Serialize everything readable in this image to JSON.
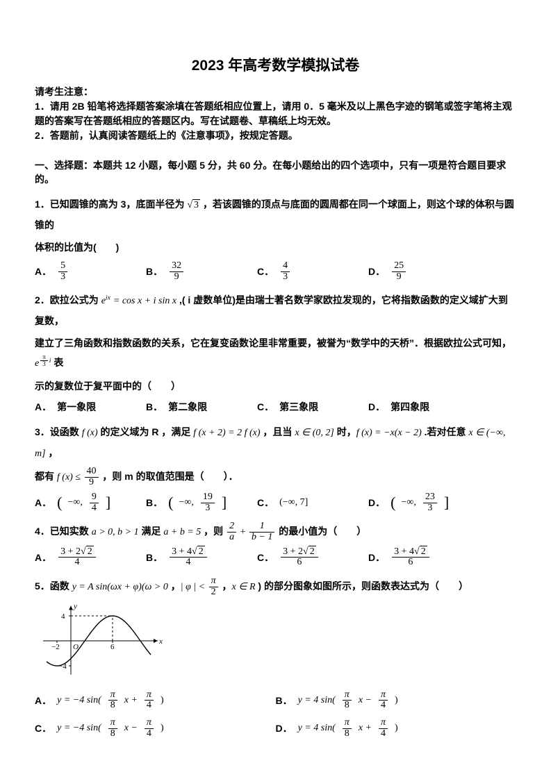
{
  "title": "2023 年高考数学模拟试卷",
  "notice_head": "请考生注意：",
  "notice1": "1．请用 2B 铅笔将选择题答案涂填在答题纸相应位置上，请用 0．5 毫米及以上黑色字迹的钢笔或签字笔将主观题的答案写在答题纸相应的答题区内。写在试题卷、草稿纸上均无效。",
  "notice2": "2．答题前，认真阅读答题纸上的《注意事项》，按规定答题。",
  "section1": "一、选择题：本题共 12 小题，每小题 5 分，共 60 分。在每小题给出的四个选项中，只有一项是符合题目要求的。",
  "q1a": "1．已知圆锥的高为 3，底面半径为 ",
  "q1_sqrt": "3",
  "q1b": " ，若该圆锥的顶点与底面的圆周都在同一个球面上，则这个球的体积与圆锥的",
  "q1c": "体积的比值为(　　)",
  "q1_opts": {
    "A": [
      "5",
      "3"
    ],
    "B": [
      "32",
      "9"
    ],
    "C": [
      "4",
      "3"
    ],
    "D": [
      "25",
      "9"
    ]
  },
  "q2a": "2．欧拉公式为 ",
  "q2_eix": "e",
  "q2_exp": "ix",
  "q2_eq": " = cos x + i sin x",
  "q2b": " ,( i 虚数单位)是由瑞士著名数学家欧拉发现的，它将指数函数的定义域扩大到复数，",
  "q2c": "建立了三角函数和指数函数的关系，它在复变函数论里非常重要，被誉为“数学中的天桥”．根据欧拉公式可知，",
  "q2_e2": "e",
  "q2_exp2num": "π",
  "q2_exp2den": "3",
  "q2_exp2i": "i",
  "q2d": " 表",
  "q2e": "示的复数位于复平面中的（　　）",
  "q2_opts": {
    "A": "第一象限",
    "B": "第二象限",
    "C": "第三象限",
    "D": "第四象限"
  },
  "q3a": "3．设函数 ",
  "q3_fx": "f (x)",
  "q3b": " 的定义域为 R ，满足 ",
  "q3_eq1": "f (x + 2) = 2 f (x)",
  "q3c": " ，且当 ",
  "q3_dom": "x ∈ (0, 2]",
  "q3d": " 时，",
  "q3_eq2": "f (x) = −x(x − 2)",
  "q3e": " .若对任意 ",
  "q3_dom2": "x ∈ (−∞, m]",
  "q3f": " ，",
  "q3g": "都有 ",
  "q3_ineq_l": "f (x) ≤ ",
  "q3_frac": [
    "40",
    "9"
  ],
  "q3h": " ，则 m 的取值范围是（　　）．",
  "q3_opts": {
    "A": [
      "−∞,",
      "9",
      "4"
    ],
    "B": [
      "−∞,",
      "19",
      "3"
    ],
    "C": "(−∞, 7]",
    "D": [
      "−∞,",
      "23",
      "3"
    ]
  },
  "q4a": "4．已知实数 ",
  "q4_cond": "a > 0, b > 1",
  "q4b": " 满足 ",
  "q4_sum": "a + b = 5",
  "q4c": " ，则 ",
  "q4_f1": [
    "2",
    "a"
  ],
  "q4_plus": " + ",
  "q4_f2": [
    "1",
    "b − 1"
  ],
  "q4d": " 的最小值为（　　）",
  "q4_opts": {
    "A": [
      "3 + 2",
      "2",
      "4"
    ],
    "B": [
      "3 + 4",
      "2",
      "4"
    ],
    "C": [
      "3 + 2",
      "2",
      "6"
    ],
    "D": [
      "3 + 4",
      "2",
      "6"
    ]
  },
  "q5a": "5．函数 ",
  "q5_fn": "y = A sin(ωx + φ)(ω > 0",
  "q5b": " ，",
  "q5_abs": "| φ | < ",
  "q5_frac": [
    "π",
    "2"
  ],
  "q5c": " ，",
  "q5_xr": "x ∈ R",
  "q5d": " ) 的部分图象如图所示，则函数表达式为（　　）",
  "q5_opts": {
    "A": [
      "y = −4 sin(",
      "π",
      "8",
      "x + ",
      "π",
      "4",
      ")"
    ],
    "B": [
      "y = 4 sin(",
      "π",
      "8",
      "x − ",
      "π",
      "4",
      ")"
    ],
    "C": [
      "y = −4 sin(",
      "π",
      "8",
      "x − ",
      "π",
      "4",
      ")"
    ],
    "D": [
      "y = 4 sin(",
      "π",
      "8",
      "x + ",
      "π",
      "4",
      ")"
    ]
  },
  "graph": {
    "width": 180,
    "height": 112,
    "stroke": "#000000",
    "axis_y_label": "y",
    "axis_x_label": "x",
    "ticks_x": [
      {
        "v": -2,
        "label": "−2"
      },
      {
        "v": 6,
        "label": "6"
      }
    ],
    "ticks_y": [
      {
        "v": 4,
        "label": "4"
      },
      {
        "v": -4,
        "label": "−4"
      }
    ],
    "origin_label": "O",
    "dash": "3,3"
  }
}
